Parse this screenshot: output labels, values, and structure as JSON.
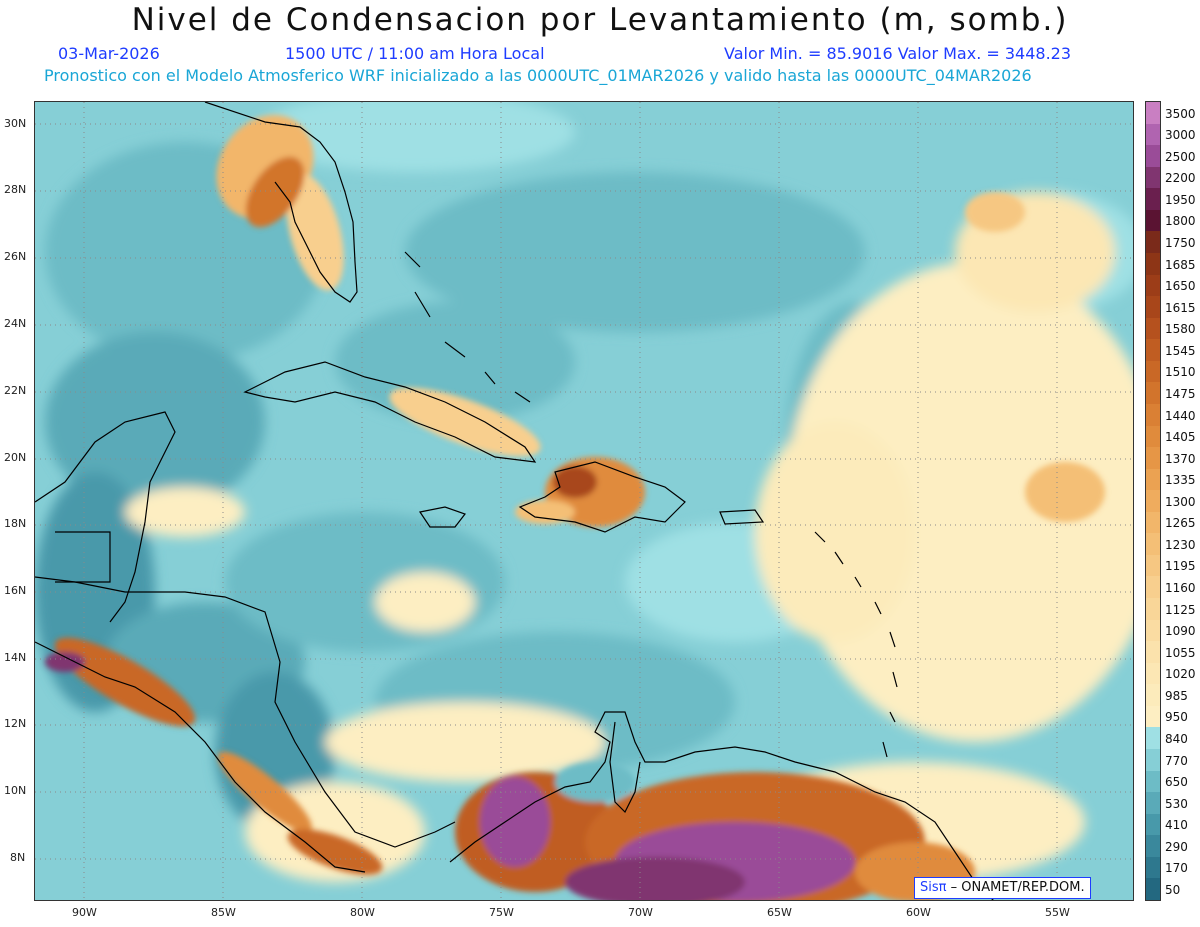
{
  "header": {
    "title": "Nivel de Condensacion por Levantamiento (m, somb.)",
    "date": "03-Mar-2026",
    "time": "1500 UTC / 11:00 am Hora Local",
    "minmax": "Valor Min. = 85.9016  Valor Max. = 3448.23",
    "info": "Pronostico con el Modelo Atmosferico WRF inicializado a las 0000UTC_01MAR2026 y valido hasta las  0000UTC_04MAR2026"
  },
  "axes": {
    "lat_labels": [
      "30N",
      "28N",
      "26N",
      "24N",
      "22N",
      "20N",
      "18N",
      "16N",
      "14N",
      "12N",
      "10N",
      "8N"
    ],
    "lon_labels": [
      "90W",
      "85W",
      "80W",
      "75W",
      "70W",
      "65W",
      "60W",
      "55W"
    ]
  },
  "legend": {
    "values": [
      "3500",
      "3000",
      "2500",
      "2200",
      "1950",
      "1800",
      "1750",
      "1685",
      "1650",
      "1615",
      "1580",
      "1545",
      "1510",
      "1475",
      "1440",
      "1405",
      "1370",
      "1335",
      "1300",
      "1265",
      "1230",
      "1195",
      "1160",
      "1125",
      "1090",
      "1055",
      "1020",
      "985",
      "950",
      "840",
      "770",
      "650",
      "530",
      "410",
      "290",
      "170",
      "50"
    ],
    "colors": [
      "#c97fc2",
      "#b064b0",
      "#9a4c98",
      "#803570",
      "#6a1f4e",
      "#5a1332",
      "#7a2a1a",
      "#8d3516",
      "#9c3d18",
      "#a8461a",
      "#b5511e",
      "#c05d22",
      "#c96826",
      "#d2742c",
      "#da8034",
      "#e08b3c",
      "#e69646",
      "#eba252",
      "#efac5e",
      "#f2b66a",
      "#f4bf76",
      "#f6c782",
      "#f8cf8e",
      "#f9d698",
      "#fadca2",
      "#fbe2ac",
      "#fce7b4",
      "#fcebbb",
      "#fdeec2",
      "#9fe0e4",
      "#86cfd6",
      "#6dbcc6",
      "#5aaab8",
      "#4899aa",
      "#3a889c",
      "#2e788e",
      "#236880"
    ],
    "colors_note": "palette bottom-to-top per scale"
  },
  "credit": {
    "logo": "Sisπ",
    "text": "– ONAMET/REP.DOM."
  }
}
